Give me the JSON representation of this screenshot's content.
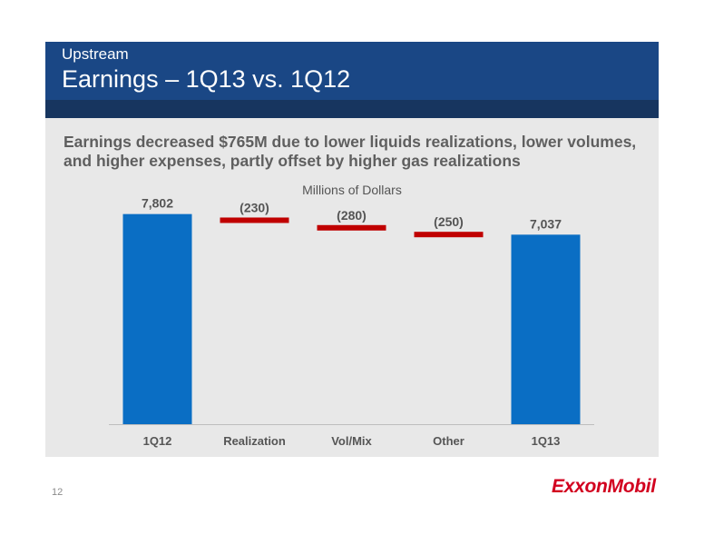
{
  "header": {
    "subtitle": "Upstream",
    "title": "Earnings – 1Q13 vs. 1Q12"
  },
  "summary": "Earnings decreased $765M due to lower liquids realizations, lower volumes, and higher expenses, partly offset by higher gas realizations",
  "page_number": "12",
  "logo_text": "ExxonMobil",
  "colors": {
    "header": "#1a4785",
    "bar": "#0a6ec4",
    "negative": "#c00000",
    "logo": "#d2001f"
  },
  "chart_data": {
    "type": "bar",
    "subtype": "waterfall",
    "title": "Millions of Dollars",
    "categories": [
      "1Q12",
      "Realization",
      "Vol/Mix",
      "Other",
      "1Q13"
    ],
    "values": [
      7802,
      -230,
      -280,
      -250,
      7037
    ],
    "labels": [
      "7,802",
      "(230)",
      "(280)",
      "(250)",
      "7,037"
    ],
    "ylim": [
      0,
      9000
    ],
    "grid": false,
    "legend": "none"
  }
}
